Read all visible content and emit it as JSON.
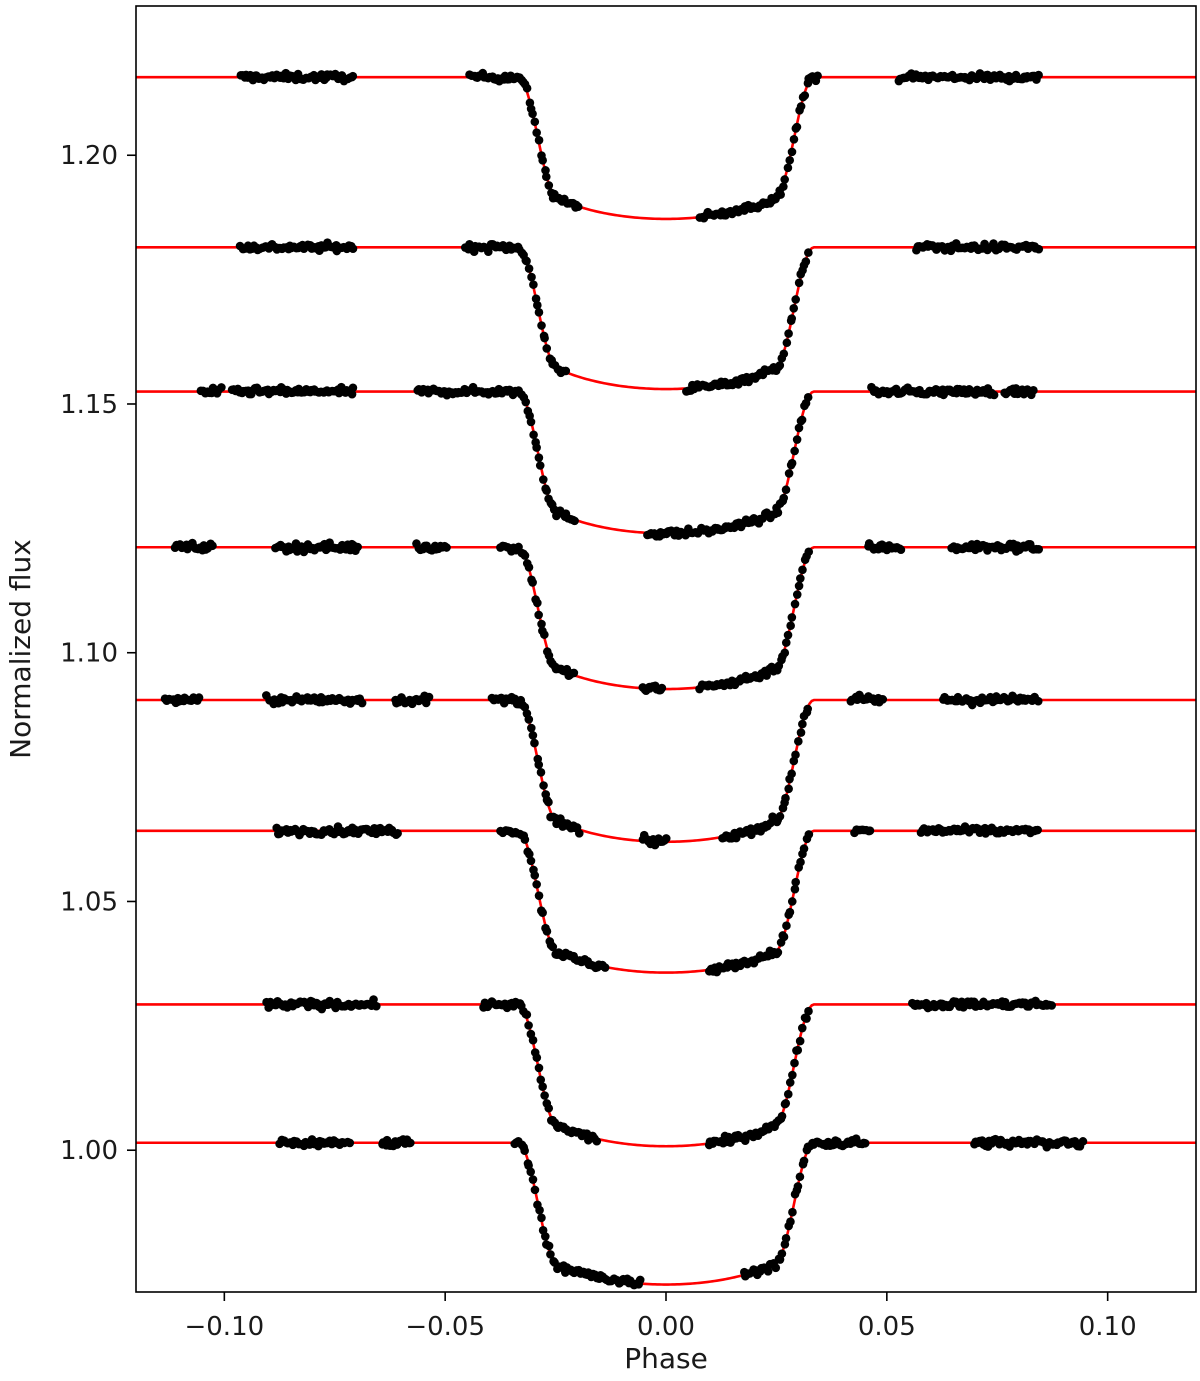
{
  "chart_data": {
    "type": "scatter",
    "title": "",
    "xlabel": "Phase",
    "ylabel": "Normalized flux",
    "xlim": [
      -0.12,
      0.12
    ],
    "ylim": [
      0.9715,
      1.23
    ],
    "xticks": [
      -0.1,
      -0.05,
      0.0,
      0.05,
      0.1
    ],
    "xtick_labels": [
      "−0.10",
      "−0.05",
      "0.00",
      "0.05",
      "0.10"
    ],
    "yticks": [
      1.0,
      1.05,
      1.1,
      1.15,
      1.2
    ],
    "ytick_labels": [
      "1.00",
      "1.05",
      "1.10",
      "1.15",
      "1.20"
    ],
    "grid": false,
    "legend": "none",
    "marker_color": "#000000",
    "model_color": "#ff0000",
    "transit_model": {
      "depth": 0.0285,
      "contact_t1": 0.0335,
      "contact_t2": 0.0245,
      "limb_darkening_u": 0.45
    },
    "series": [
      {
        "baseline": 1.2157,
        "observed_ranges": [
          [
            -0.0965,
            -0.0705
          ],
          [
            -0.0445,
            -0.0325
          ],
          [
            -0.0325,
            -0.0195
          ],
          [
            0.0075,
            0.0345
          ],
          [
            0.0525,
            0.0845
          ]
        ],
        "scatter": 0.0007
      },
      {
        "baseline": 1.1815,
        "observed_ranges": [
          [
            -0.0965,
            -0.0705
          ],
          [
            -0.0455,
            -0.0325
          ],
          [
            -0.0325,
            -0.0225
          ],
          [
            0.0045,
            0.0325
          ],
          [
            0.0565,
            0.0845
          ]
        ],
        "scatter": 0.0007
      },
      {
        "baseline": 1.1525,
        "observed_ranges": [
          [
            -0.1055,
            -0.1005
          ],
          [
            -0.0985,
            -0.0705
          ],
          [
            -0.0565,
            -0.0325
          ],
          [
            -0.0325,
            -0.0205
          ],
          [
            -0.0045,
            0.0325
          ],
          [
            0.0465,
            0.0745
          ],
          [
            0.0765,
            0.0835
          ]
        ],
        "scatter": 0.0007
      },
      {
        "baseline": 1.1212,
        "observed_ranges": [
          [
            -0.1115,
            -0.1025
          ],
          [
            -0.0885,
            -0.0695
          ],
          [
            -0.0565,
            -0.0495
          ],
          [
            -0.0375,
            -0.0325
          ],
          [
            -0.0325,
            -0.0205
          ],
          [
            -0.0055,
            -0.0005
          ],
          [
            0.0075,
            0.0325
          ],
          [
            0.0455,
            0.0535
          ],
          [
            0.0645,
            0.0845
          ]
        ],
        "scatter": 0.0008
      },
      {
        "baseline": 1.0905,
        "observed_ranges": [
          [
            -0.1135,
            -0.1055
          ],
          [
            -0.0905,
            -0.0685
          ],
          [
            -0.0615,
            -0.0535
          ],
          [
            -0.0395,
            -0.0325
          ],
          [
            -0.0325,
            -0.0195
          ],
          [
            -0.0055,
            0.0005
          ],
          [
            0.0125,
            0.0325
          ],
          [
            0.0415,
            0.0495
          ],
          [
            0.0625,
            0.0845
          ]
        ],
        "scatter": 0.0008
      },
      {
        "baseline": 1.0642,
        "observed_ranges": [
          [
            -0.0885,
            -0.0605
          ],
          [
            -0.0375,
            -0.0325
          ],
          [
            -0.0325,
            -0.0135
          ],
          [
            0.0095,
            0.0325
          ],
          [
            0.0425,
            0.0465
          ],
          [
            0.0575,
            0.0845
          ]
        ],
        "scatter": 0.0007
      },
      {
        "baseline": 1.0293,
        "observed_ranges": [
          [
            -0.0905,
            -0.0655
          ],
          [
            -0.0415,
            -0.0325
          ],
          [
            -0.0325,
            -0.0155
          ],
          [
            0.0095,
            0.0325
          ],
          [
            0.0555,
            0.0875
          ]
        ],
        "scatter": 0.0007
      },
      {
        "baseline": 1.0015,
        "observed_ranges": [
          [
            -0.0875,
            -0.0715
          ],
          [
            -0.0645,
            -0.0575
          ],
          [
            -0.0345,
            -0.0325
          ],
          [
            -0.0325,
            -0.0055
          ],
          [
            0.0175,
            0.0325
          ],
          [
            0.0325,
            0.0455
          ],
          [
            0.0695,
            0.0945
          ]
        ],
        "scatter": 0.0008
      }
    ]
  }
}
